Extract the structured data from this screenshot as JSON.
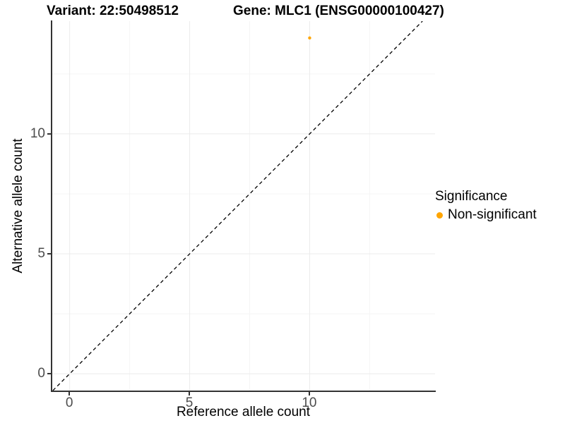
{
  "titles": {
    "left": "Variant: 22:50498512",
    "right": "Gene: MLC1 (ENSG00000100427)"
  },
  "axes": {
    "x": {
      "label": "Reference allele count"
    },
    "y": {
      "label": "Alternative allele count"
    }
  },
  "legend": {
    "title": "Significance",
    "items": [
      {
        "label": "Non-significant",
        "color": "#FFA500"
      }
    ]
  },
  "chart_data": {
    "type": "scatter",
    "title": "Variant: 22:50498512 — Gene: MLC1 (ENSG00000100427)",
    "xlabel": "Reference allele count",
    "ylabel": "Alternative allele count",
    "xlim": [
      -0.725,
      15.225
    ],
    "ylim": [
      -0.7,
      14.7
    ],
    "x_breaks": [
      0,
      5,
      10
    ],
    "y_breaks": [
      0,
      5,
      10
    ],
    "x_minor_breaks": [
      2.5,
      7.5,
      12.5
    ],
    "y_minor_breaks": [
      2.5,
      7.5,
      12.5
    ],
    "grid": "major-and-minor, very light gray, white panel background",
    "legend_position": "right-center",
    "series": [
      {
        "name": "Non-significant",
        "color": "#FFA500",
        "points": [
          {
            "x": 10,
            "y": 14
          }
        ]
      }
    ],
    "reference_line": {
      "type": "identity y=x",
      "style": "dashed",
      "color": "#000000"
    }
  },
  "colors": {
    "background": "#FFFFFF",
    "axis_line": "#333333",
    "tick_text": "#4D4D4D",
    "grid_major": "#EBEBEB",
    "grid_minor": "#F5F5F5",
    "dashed_line": "#000000",
    "point": "#FFA500"
  }
}
